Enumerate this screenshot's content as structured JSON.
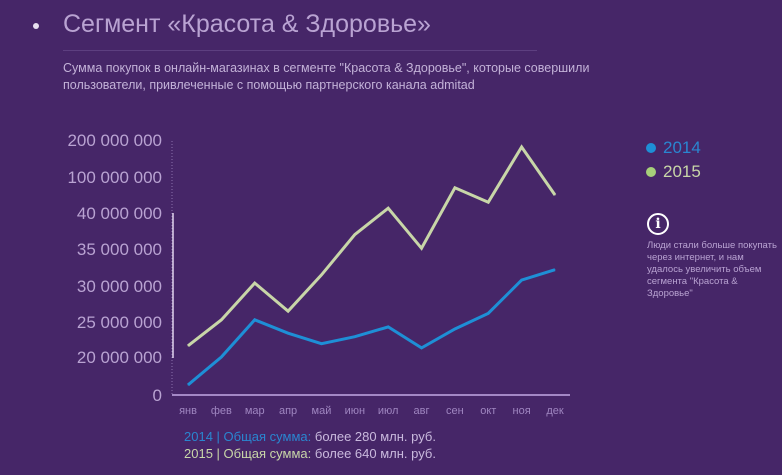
{
  "header": {
    "title": "Сегмент «Красота & Здоровье»",
    "subtitle": "Сумма покупок в онлайн-магазинах в сегменте \"Красота & Здоровье\", которые совершили пользователи, привлеченные с помощью партнерского канала admitad"
  },
  "legend": [
    {
      "label": "2014",
      "color": "#1e8fd6"
    },
    {
      "label": "2015",
      "color": "#a6cf7a"
    }
  ],
  "note": {
    "icon": "info-icon",
    "text": "Люди стали больше покупать через интернет, и нам удалось увеличить объем сегмента \"Красота & Здоровье\""
  },
  "totals": [
    {
      "year": "2014",
      "label": "| Общая сумма:",
      "value": "более 280 млн. руб."
    },
    {
      "year": "2015",
      "label": "| Общая сумма:",
      "value": "более 640 млн. руб."
    }
  ],
  "chart_data": {
    "type": "line",
    "categories": [
      "янв",
      "фев",
      "мар",
      "апр",
      "май",
      "июн",
      "июл",
      "авг",
      "сен",
      "окт",
      "ноя",
      "дек"
    ],
    "y_ticks": [
      0,
      20000000,
      25000000,
      30000000,
      35000000,
      40000000,
      100000000,
      200000000
    ],
    "y_tick_labels": [
      "0",
      "20 000 000",
      "25 000 000",
      "30 000 000",
      "35 000 000",
      "40 000 000",
      "100 000 000",
      "200 000 000"
    ],
    "y_scale": "non-linear (ticks evenly spaced)",
    "grid": false,
    "legend_position": "right",
    "series": [
      {
        "name": "2014",
        "color": "#1e8fd6",
        "values": [
          5300000,
          20000000,
          25300000,
          23400000,
          21900000,
          22900000,
          24300000,
          21300000,
          24000000,
          26200000,
          30800000,
          32200000
        ]
      },
      {
        "name": "2015",
        "color": "#c8d6a8",
        "values": [
          21600000,
          25300000,
          30400000,
          26500000,
          31500000,
          37000000,
          48000000,
          35100000,
          82000000,
          58000000,
          181000000,
          70000000
        ]
      }
    ]
  }
}
